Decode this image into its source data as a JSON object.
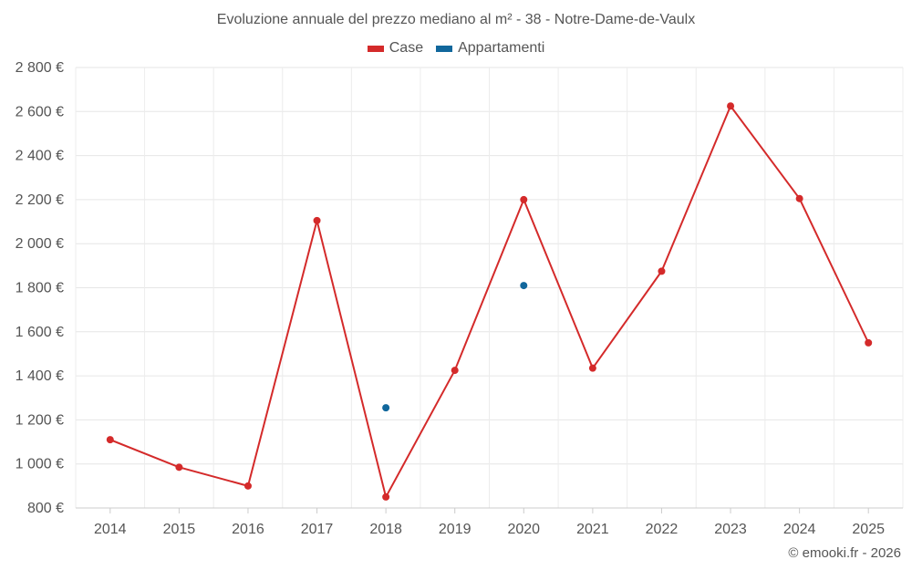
{
  "chart_data": {
    "type": "line",
    "title": "Evoluzione annuale del prezzo mediano al m² - 38 - Notre-Dame-de-Vaulx",
    "categories": [
      "2014",
      "2015",
      "2016",
      "2017",
      "2018",
      "2019",
      "2020",
      "2021",
      "2022",
      "2023",
      "2024",
      "2025"
    ],
    "ylim": [
      800,
      2800
    ],
    "yticks": [
      800,
      1000,
      1200,
      1400,
      1600,
      1800,
      2000,
      2200,
      2400,
      2600,
      2800
    ],
    "ytick_labels": [
      "800 €",
      "1 000 €",
      "1 200 €",
      "1 400 €",
      "1 600 €",
      "1 800 €",
      "2 000 €",
      "2 200 €",
      "2 400 €",
      "2 600 €",
      "2 800 €"
    ],
    "series": [
      {
        "name": "Case",
        "color": "#d42a2a",
        "values": [
          1110,
          985,
          900,
          2105,
          850,
          1425,
          2200,
          1435,
          1875,
          2625,
          2205,
          1550
        ]
      },
      {
        "name": "Appartamenti",
        "color": "#11679c",
        "values": [
          null,
          null,
          null,
          null,
          1255,
          null,
          1810,
          null,
          null,
          null,
          null,
          null
        ]
      }
    ],
    "grid": true,
    "legend_position": "top"
  },
  "credit": "© emooki.fr - 2026"
}
